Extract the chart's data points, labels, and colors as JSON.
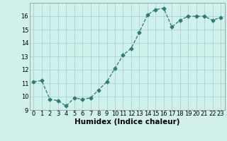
{
  "x": [
    0,
    1,
    2,
    3,
    4,
    5,
    6,
    7,
    8,
    9,
    10,
    11,
    12,
    13,
    14,
    15,
    16,
    17,
    18,
    19,
    20,
    21,
    22,
    23
  ],
  "y": [
    11.1,
    11.2,
    9.8,
    9.7,
    9.3,
    9.9,
    9.8,
    9.9,
    10.5,
    11.1,
    12.1,
    13.1,
    13.6,
    14.8,
    16.1,
    16.5,
    16.6,
    15.2,
    15.7,
    16.0,
    16.0,
    16.0,
    15.7,
    15.9
  ],
  "line_color": "#2e7d6e",
  "marker": "D",
  "marker_size": 2.5,
  "background_color": "#cff0eb",
  "grid_color": "#b0d8d2",
  "xlabel": "Humidex (Indice chaleur)",
  "ylim": [
    9,
    17
  ],
  "xlim": [
    -0.5,
    23.5
  ],
  "yticks": [
    9,
    10,
    11,
    12,
    13,
    14,
    15,
    16
  ],
  "xticks": [
    0,
    1,
    2,
    3,
    4,
    5,
    6,
    7,
    8,
    9,
    10,
    11,
    12,
    13,
    14,
    15,
    16,
    17,
    18,
    19,
    20,
    21,
    22,
    23
  ],
  "xtick_labels": [
    "0",
    "1",
    "2",
    "3",
    "4",
    "5",
    "6",
    "7",
    "8",
    "9",
    "10",
    "11",
    "12",
    "13",
    "14",
    "15",
    "16",
    "17",
    "18",
    "19",
    "20",
    "21",
    "22",
    "23"
  ],
  "tick_fontsize": 6,
  "xlabel_fontsize": 7.5
}
